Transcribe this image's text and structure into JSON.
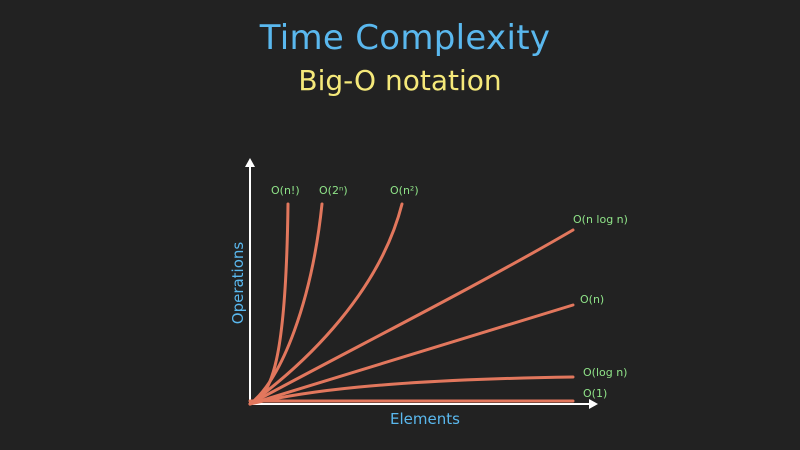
{
  "title": "Time Complexity",
  "subtitle": "Big-O notation",
  "chart_data": {
    "type": "line",
    "xlabel": "Elements",
    "ylabel": "Operations",
    "grid": false,
    "legend": "inline labels at curve ends",
    "colors": {
      "curve": "#e2775d",
      "axis": "#ffffff",
      "label": "#8fe388",
      "axis_title": "#5ab8ee"
    },
    "series": [
      {
        "name": "O(n!)",
        "kind": "factorial"
      },
      {
        "name": "O(2ⁿ)",
        "kind": "exponential"
      },
      {
        "name": "O(n²)",
        "kind": "quadratic"
      },
      {
        "name": "O(n log n)",
        "kind": "linearithmic"
      },
      {
        "name": "O(n)",
        "kind": "linear"
      },
      {
        "name": "O(log n)",
        "kind": "logarithmic"
      },
      {
        "name": "O(1)",
        "kind": "constant"
      }
    ]
  }
}
